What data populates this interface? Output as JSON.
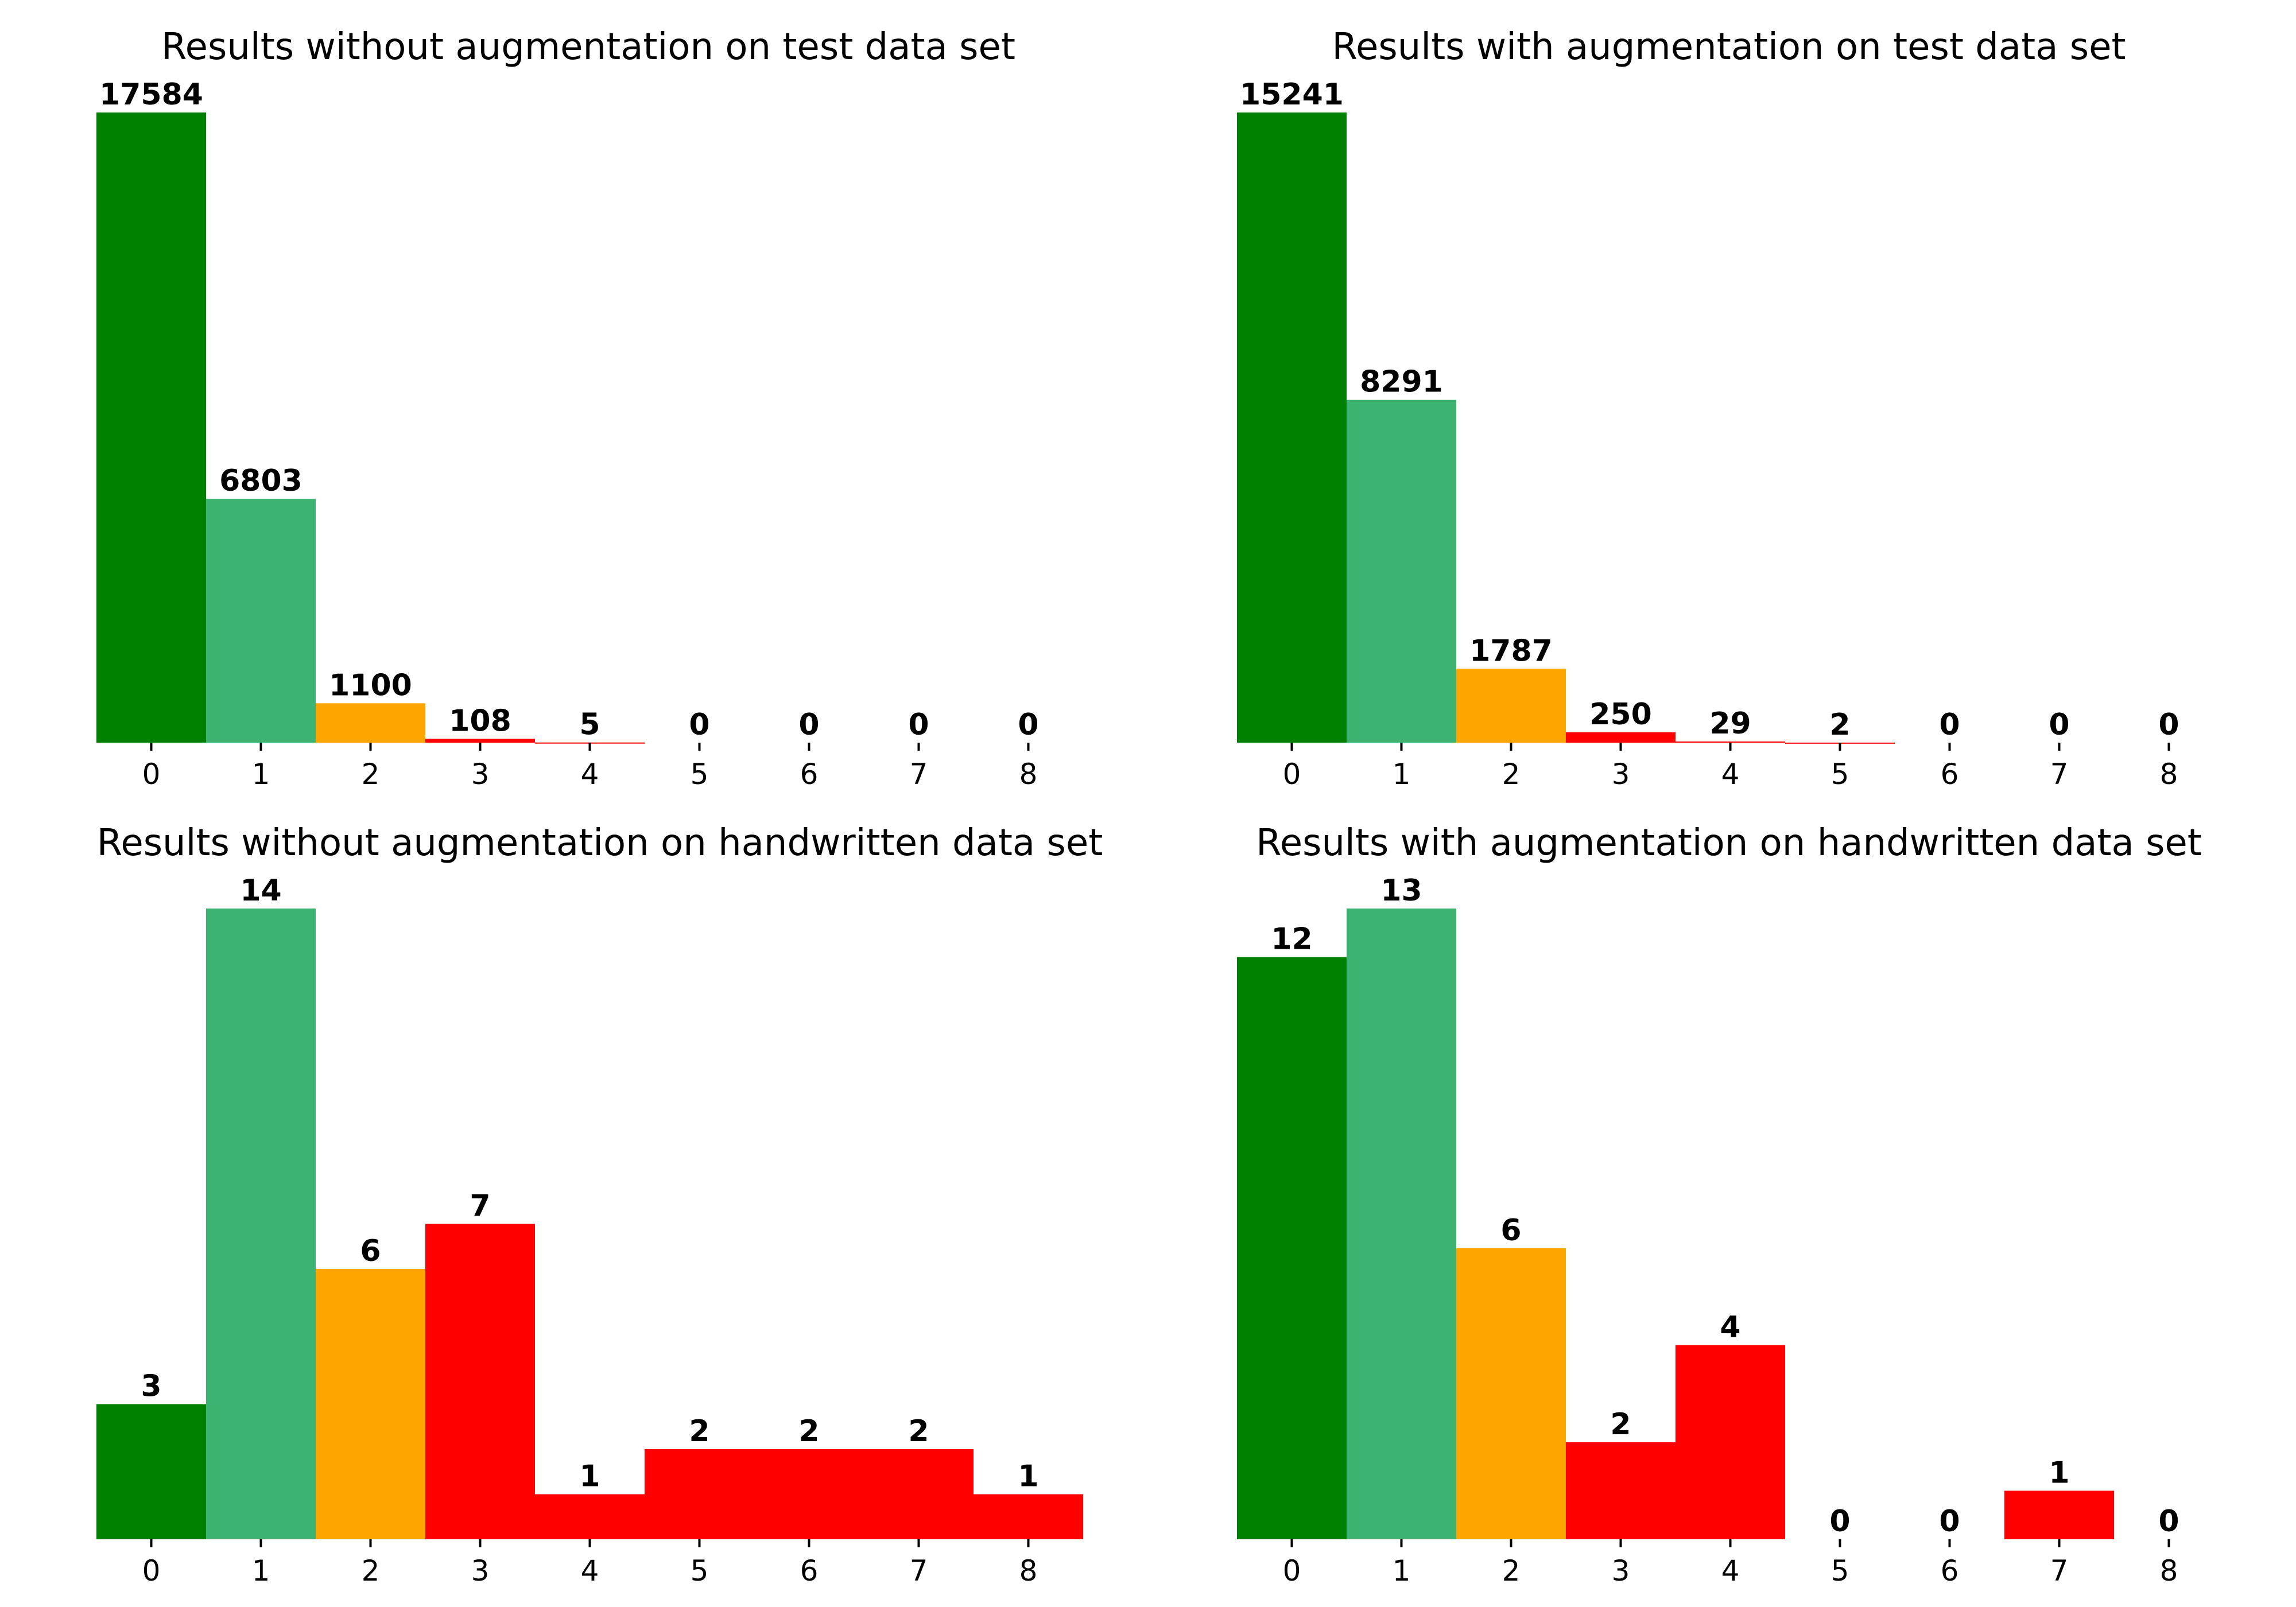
{
  "chart_data": [
    {
      "type": "bar",
      "title": "Results without augmentation on test data set",
      "categories": [
        "0",
        "1",
        "2",
        "3",
        "4",
        "5",
        "6",
        "7",
        "8"
      ],
      "values": [
        17584,
        6803,
        1100,
        108,
        5,
        0,
        0,
        0,
        0
      ],
      "colors": [
        "#008000",
        "#3cb371",
        "#ffa500",
        "#ff0000",
        "#ff0000",
        "#ff0000",
        "#ff0000",
        "#ff0000",
        "#ff0000"
      ],
      "ylim": [
        0,
        17584
      ],
      "xlabel": "",
      "ylabel": "",
      "grid": false
    },
    {
      "type": "bar",
      "title": "Results with augmentation on test data set",
      "categories": [
        "0",
        "1",
        "2",
        "3",
        "4",
        "5",
        "6",
        "7",
        "8"
      ],
      "values": [
        15241,
        8291,
        1787,
        250,
        29,
        2,
        0,
        0,
        0
      ],
      "colors": [
        "#008000",
        "#3cb371",
        "#ffa500",
        "#ff0000",
        "#ff0000",
        "#ff0000",
        "#ff0000",
        "#ff0000",
        "#ff0000"
      ],
      "ylim": [
        0,
        15241
      ],
      "xlabel": "",
      "ylabel": "",
      "grid": false
    },
    {
      "type": "bar",
      "title": "Results without augmentation on handwritten data set",
      "categories": [
        "0",
        "1",
        "2",
        "3",
        "4",
        "5",
        "6",
        "7",
        "8"
      ],
      "values": [
        3,
        14,
        6,
        7,
        1,
        2,
        2,
        2,
        1
      ],
      "colors": [
        "#008000",
        "#3cb371",
        "#ffa500",
        "#ff0000",
        "#ff0000",
        "#ff0000",
        "#ff0000",
        "#ff0000",
        "#ff0000"
      ],
      "ylim": [
        0,
        14
      ],
      "xlabel": "",
      "ylabel": "",
      "grid": false
    },
    {
      "type": "bar",
      "title": "Results with augmentation on handwritten data set",
      "categories": [
        "0",
        "1",
        "2",
        "3",
        "4",
        "5",
        "6",
        "7",
        "8"
      ],
      "values": [
        12,
        13,
        6,
        2,
        4,
        0,
        0,
        1,
        0
      ],
      "colors": [
        "#008000",
        "#3cb371",
        "#ffa500",
        "#ff0000",
        "#ff0000",
        "#ff0000",
        "#ff0000",
        "#ff0000",
        "#ff0000"
      ],
      "ylim": [
        0,
        13
      ],
      "xlabel": "",
      "ylabel": "",
      "grid": false
    }
  ]
}
